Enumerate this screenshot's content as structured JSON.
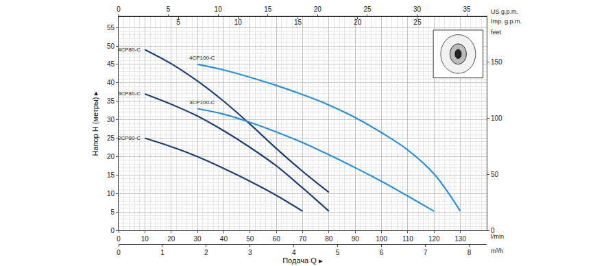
{
  "chart_data": {
    "type": "line",
    "x_label": "Подача Q ▸",
    "y_label": "Напор H (метры) ▸",
    "x_unit": "l/min",
    "xlim": [
      0,
      140
    ],
    "xticks": [
      0,
      10,
      20,
      30,
      40,
      50,
      60,
      70,
      80,
      90,
      100,
      110,
      120,
      130
    ],
    "ylim": [
      0,
      58
    ],
    "yticks": [
      0,
      5,
      10,
      15,
      20,
      25,
      30,
      35,
      40,
      45,
      50,
      55
    ],
    "y2label": "feet",
    "y2lim": [
      0,
      190.29
    ],
    "y2ticks": [
      0,
      50,
      100,
      150
    ],
    "x2label": "US g.p.m.",
    "x2lim": [
      0,
      36.99
    ],
    "x2ticks": [
      0,
      5,
      10,
      15,
      20,
      25,
      30,
      35
    ],
    "x3label": "Imp. g.p.m.",
    "x3lim": [
      0,
      30.8
    ],
    "x3ticks": [
      0,
      5,
      10,
      15,
      20,
      25
    ],
    "x4label": "m³/h",
    "x4lim": [
      0,
      8.4
    ],
    "x4ticks": [
      0,
      1,
      2,
      3,
      4,
      5,
      6,
      7,
      8
    ],
    "grid": true,
    "series": [
      {
        "name": "4CP80-C",
        "color": "#1d3f72",
        "x": [
          10,
          20,
          30,
          40,
          50,
          60,
          70,
          80
        ],
        "values": [
          49,
          45.2,
          40.5,
          35,
          28.8,
          22.2,
          16,
          10.3
        ]
      },
      {
        "name": "3CP80-C",
        "color": "#1d3f72",
        "x": [
          10,
          20,
          30,
          40,
          50,
          60,
          70,
          80
        ],
        "values": [
          37,
          34.2,
          31,
          27,
          22.5,
          17.5,
          11.5,
          5.2
        ]
      },
      {
        "name": "2CP80-C",
        "color": "#1d3f72",
        "x": [
          10,
          20,
          30,
          40,
          50,
          60,
          70
        ],
        "values": [
          25,
          22.7,
          20,
          16.8,
          13.3,
          9.5,
          5.2
        ]
      },
      {
        "name": "4CP100-C",
        "color": "#2b8fd6",
        "x": [
          30,
          40,
          50,
          60,
          70,
          80,
          90,
          100,
          110,
          120,
          130
        ],
        "values": [
          45,
          43.5,
          41.5,
          39.3,
          36.8,
          34,
          30.6,
          26.5,
          21.8,
          15.3,
          5.2
        ]
      },
      {
        "name": "3CP100-C",
        "color": "#2b8fd6",
        "x": [
          30,
          40,
          50,
          60,
          70,
          80,
          90,
          100,
          110,
          120
        ],
        "values": [
          33,
          31.5,
          29.3,
          26.7,
          23.8,
          20.5,
          17,
          13.3,
          9.3,
          5.2
        ]
      }
    ]
  }
}
